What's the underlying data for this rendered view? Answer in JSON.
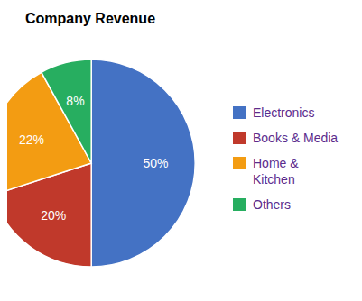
{
  "chart_data": {
    "type": "pie",
    "title": "Company Revenue",
    "categories": [
      "Electronics",
      "Books & Media",
      "Home &\nKitchen",
      "Others"
    ],
    "values": [
      50,
      20,
      22,
      8
    ],
    "value_labels": [
      "50%",
      "20%",
      "22%",
      "8%"
    ],
    "colors": [
      "#4472C4",
      "#C0392B",
      "#F39C12",
      "#27AE60"
    ],
    "data_labels": true,
    "legend": "right"
  }
}
